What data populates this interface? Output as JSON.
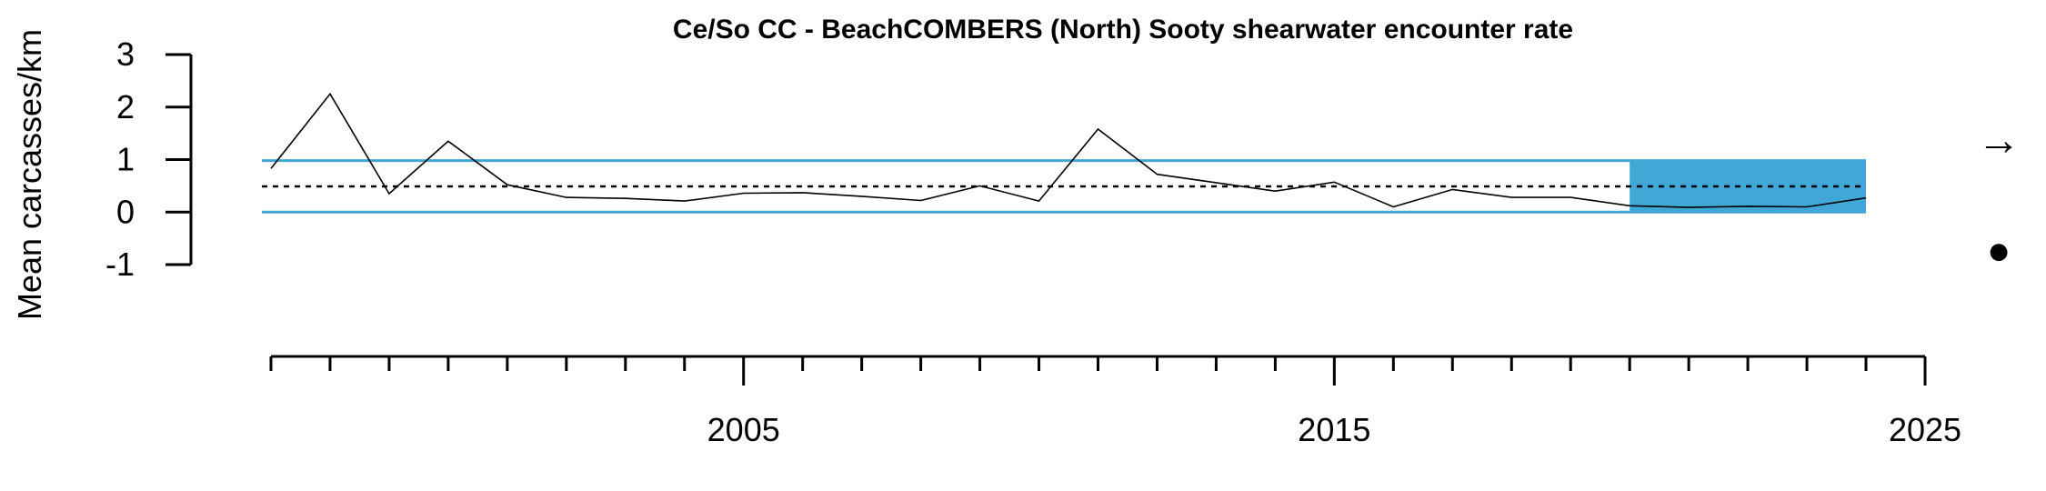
{
  "chart_data": {
    "type": "line",
    "title": "Ce/So CC - BeachCOMBERS (North) Sooty shearwater encounter rate",
    "ylabel": "Mean carcasses/km",
    "xlabel": "",
    "xlim": [
      1997,
      2025
    ],
    "ylim": [
      -1,
      3
    ],
    "y_ticks": [
      3,
      2,
      1,
      0,
      -1
    ],
    "x_major_ticks": [
      2005,
      2015,
      2025
    ],
    "x_minor_ticks_start": 1997,
    "x_minor_ticks_end": 2025,
    "series": [
      {
        "x": [
          1997,
          1998,
          1999,
          2000,
          2001,
          2002,
          2003,
          2004,
          2005,
          2006,
          2007,
          2008,
          2009,
          2010,
          2011,
          2012,
          2013,
          2014,
          2015,
          2016,
          2017,
          2018,
          2019,
          2020,
          2021,
          2022,
          2023,
          2024
        ],
        "values": [
          0.83,
          2.25,
          0.35,
          1.35,
          0.52,
          0.28,
          0.26,
          0.21,
          0.36,
          0.37,
          0.3,
          0.22,
          0.5,
          0.21,
          1.58,
          0.72,
          0.56,
          0.4,
          0.57,
          0.1,
          0.43,
          0.28,
          0.28,
          0.12,
          0.09,
          0.11,
          0.1,
          0.27
        ],
        "color": "#000000"
      }
    ],
    "reference_lines": {
      "mean": 0.49,
      "upper": 0.98,
      "lower": 0.0,
      "mean_style": "dotted",
      "band_color": "#41A7D6"
    },
    "recent_shaded_period": {
      "x_start": 2020,
      "x_end": 2024,
      "y_start": 0.0,
      "y_end": 0.98,
      "color": "#41A7D6"
    },
    "trend_symbol": "→",
    "status_symbol": "●"
  }
}
